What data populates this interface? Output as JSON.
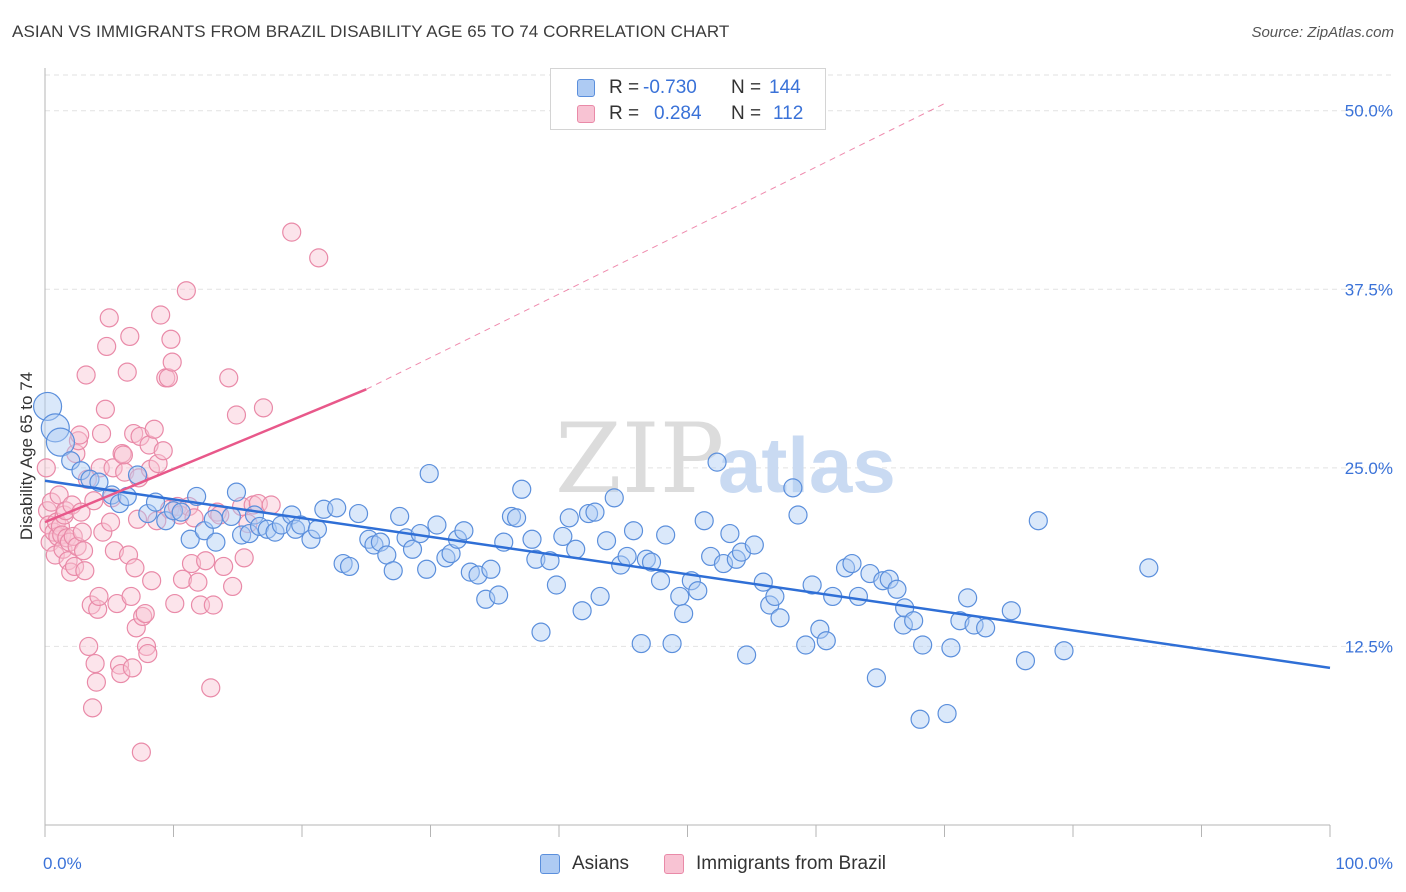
{
  "header": {
    "title": "ASIAN VS IMMIGRANTS FROM BRAZIL DISABILITY AGE 65 TO 74 CORRELATION CHART",
    "source": "Source: ZipAtlas.com"
  },
  "legend": {
    "r_label": "R =",
    "n_label": "N =",
    "rows": [
      {
        "r": "-0.730",
        "n": "144",
        "color": "#5b8fdc",
        "fill": "#aecbf3"
      },
      {
        "r": "0.284",
        "n": "112",
        "color": "#e98aa8",
        "fill": "#f8c3d3"
      }
    ]
  },
  "watermark": {
    "zip": "ZIP",
    "atlas": "atlas"
  },
  "colors": {
    "blue_line": "#2f6fd6",
    "pink_line": "#e8588a",
    "blue_stroke": "#5b8fdc",
    "blue_fill": "#aecbf3",
    "pink_stroke": "#e98aa8",
    "pink_fill": "#f8c3d3",
    "grid": "#e2e2e2",
    "tick_label": "#3a72d8"
  },
  "chart_data": {
    "type": "scatter",
    "title": "ASIAN VS IMMIGRANTS FROM BRAZIL DISABILITY AGE 65 TO 74 CORRELATION CHART",
    "ylabel": "Disability Age 65 to 74",
    "xlabel": "",
    "xlim": [
      0,
      100
    ],
    "ylim": [
      0,
      52.5
    ],
    "x_tick_labels": [
      "0.0%",
      "100.0%"
    ],
    "y_ticks": [
      12.5,
      25.0,
      37.5,
      50.0
    ],
    "y_tick_labels": [
      "12.5%",
      "25.0%",
      "37.5%",
      "50.0%"
    ],
    "grid": "horizontal dashed",
    "legend_position": "bottom-center",
    "series": [
      {
        "name": "Asians",
        "trend": {
          "x": [
            0,
            100
          ],
          "y": [
            24.1,
            11.0
          ],
          "style": "solid"
        },
        "points": [
          [
            0.2,
            29.3
          ],
          [
            0.8,
            27.8
          ],
          [
            1.2,
            26.8
          ],
          [
            2.0,
            25.5
          ],
          [
            2.8,
            24.8
          ],
          [
            3.5,
            24.2
          ],
          [
            4.2,
            24.0
          ],
          [
            5.2,
            23.1
          ],
          [
            5.8,
            22.5
          ],
          [
            6.4,
            23.0
          ],
          [
            7.2,
            24.5
          ],
          [
            8.0,
            21.8
          ],
          [
            8.6,
            22.6
          ],
          [
            9.4,
            21.3
          ],
          [
            10.0,
            22.0
          ],
          [
            10.6,
            21.9
          ],
          [
            11.3,
            20.0
          ],
          [
            11.8,
            23.0
          ],
          [
            12.4,
            20.6
          ],
          [
            13.1,
            21.4
          ],
          [
            13.3,
            19.8
          ],
          [
            14.5,
            21.6
          ],
          [
            14.9,
            23.3
          ],
          [
            15.3,
            20.3
          ],
          [
            15.9,
            20.4
          ],
          [
            16.3,
            21.7
          ],
          [
            16.7,
            20.9
          ],
          [
            17.3,
            20.7
          ],
          [
            17.9,
            20.5
          ],
          [
            18.4,
            21.0
          ],
          [
            19.2,
            21.7
          ],
          [
            19.5,
            20.7
          ],
          [
            19.9,
            21.0
          ],
          [
            20.7,
            20.0
          ],
          [
            21.2,
            20.7
          ],
          [
            21.7,
            22.1
          ],
          [
            22.7,
            22.2
          ],
          [
            23.2,
            18.3
          ],
          [
            23.7,
            18.1
          ],
          [
            24.4,
            21.8
          ],
          [
            25.2,
            20.0
          ],
          [
            25.6,
            19.6
          ],
          [
            26.1,
            19.8
          ],
          [
            26.6,
            18.9
          ],
          [
            27.1,
            17.8
          ],
          [
            27.6,
            21.6
          ],
          [
            28.1,
            20.1
          ],
          [
            28.6,
            19.3
          ],
          [
            29.2,
            20.4
          ],
          [
            29.7,
            17.9
          ],
          [
            29.9,
            24.6
          ],
          [
            30.5,
            21.0
          ],
          [
            31.2,
            18.7
          ],
          [
            31.6,
            19.0
          ],
          [
            32.1,
            20.0
          ],
          [
            32.6,
            20.6
          ],
          [
            33.1,
            17.7
          ],
          [
            33.7,
            17.5
          ],
          [
            34.3,
            15.8
          ],
          [
            34.7,
            17.9
          ],
          [
            35.3,
            16.1
          ],
          [
            35.7,
            19.8
          ],
          [
            36.3,
            21.6
          ],
          [
            36.7,
            21.5
          ],
          [
            37.1,
            23.5
          ],
          [
            37.9,
            20.0
          ],
          [
            38.2,
            18.6
          ],
          [
            38.6,
            13.5
          ],
          [
            39.3,
            18.5
          ],
          [
            39.8,
            16.8
          ],
          [
            40.3,
            20.2
          ],
          [
            40.8,
            21.5
          ],
          [
            41.3,
            19.3
          ],
          [
            41.8,
            15.0
          ],
          [
            42.3,
            21.8
          ],
          [
            42.8,
            21.9
          ],
          [
            43.2,
            16.0
          ],
          [
            43.7,
            19.9
          ],
          [
            44.3,
            22.9
          ],
          [
            44.8,
            18.2
          ],
          [
            45.3,
            18.8
          ],
          [
            45.8,
            20.6
          ],
          [
            46.4,
            12.7
          ],
          [
            46.8,
            18.6
          ],
          [
            47.2,
            18.4
          ],
          [
            47.9,
            17.1
          ],
          [
            48.3,
            20.3
          ],
          [
            48.8,
            12.7
          ],
          [
            49.4,
            16.0
          ],
          [
            49.7,
            14.8
          ],
          [
            50.3,
            17.1
          ],
          [
            50.8,
            16.4
          ],
          [
            51.3,
            21.3
          ],
          [
            51.8,
            18.8
          ],
          [
            52.3,
            25.4
          ],
          [
            52.8,
            18.3
          ],
          [
            53.3,
            20.4
          ],
          [
            53.8,
            18.6
          ],
          [
            54.2,
            19.1
          ],
          [
            54.6,
            11.9
          ],
          [
            55.2,
            19.6
          ],
          [
            55.9,
            17.0
          ],
          [
            56.4,
            15.4
          ],
          [
            56.8,
            16.0
          ],
          [
            57.2,
            14.5
          ],
          [
            58.2,
            23.6
          ],
          [
            58.6,
            21.7
          ],
          [
            59.2,
            12.6
          ],
          [
            59.7,
            16.8
          ],
          [
            60.3,
            13.7
          ],
          [
            60.8,
            12.9
          ],
          [
            61.3,
            16.0
          ],
          [
            62.3,
            18.0
          ],
          [
            62.8,
            18.3
          ],
          [
            63.3,
            16.0
          ],
          [
            64.2,
            17.6
          ],
          [
            64.7,
            10.3
          ],
          [
            65.2,
            17.1
          ],
          [
            65.7,
            17.2
          ],
          [
            66.3,
            16.5
          ],
          [
            66.8,
            14.0
          ],
          [
            66.9,
            15.2
          ],
          [
            67.6,
            14.3
          ],
          [
            68.1,
            7.4
          ],
          [
            68.3,
            12.6
          ],
          [
            70.2,
            7.8
          ],
          [
            70.5,
            12.4
          ],
          [
            71.2,
            14.3
          ],
          [
            71.8,
            15.9
          ],
          [
            72.3,
            14.0
          ],
          [
            73.2,
            13.8
          ],
          [
            75.2,
            15.0
          ],
          [
            76.3,
            11.5
          ],
          [
            77.3,
            21.3
          ],
          [
            79.3,
            12.2
          ],
          [
            85.9,
            18.0
          ]
        ]
      },
      {
        "name": "Immigrants from Brazil",
        "trend": {
          "x": [
            0,
            25,
            70
          ],
          "y": [
            21.2,
            30.5,
            50.5
          ],
          "style": "solid-then-dashed",
          "solid_until": 25
        },
        "points": [
          [
            0.1,
            25.0
          ],
          [
            0.2,
            22.0
          ],
          [
            0.3,
            21.0
          ],
          [
            0.4,
            19.8
          ],
          [
            0.5,
            22.6
          ],
          [
            0.7,
            20.5
          ],
          [
            0.8,
            18.9
          ],
          [
            0.9,
            21.2
          ],
          [
            1.0,
            20.2
          ],
          [
            1.1,
            23.1
          ],
          [
            1.2,
            20.9
          ],
          [
            1.3,
            20.3
          ],
          [
            1.4,
            19.3
          ],
          [
            1.5,
            21.7
          ],
          [
            1.6,
            22.0
          ],
          [
            1.7,
            20.1
          ],
          [
            1.8,
            18.5
          ],
          [
            1.9,
            19.8
          ],
          [
            2.0,
            17.7
          ],
          [
            2.1,
            22.4
          ],
          [
            2.2,
            20.2
          ],
          [
            2.3,
            18.1
          ],
          [
            2.4,
            26.0
          ],
          [
            2.5,
            19.5
          ],
          [
            2.6,
            26.9
          ],
          [
            2.7,
            27.3
          ],
          [
            2.8,
            21.9
          ],
          [
            2.9,
            20.5
          ],
          [
            3.0,
            19.2
          ],
          [
            3.1,
            17.8
          ],
          [
            3.2,
            31.5
          ],
          [
            3.3,
            24.2
          ],
          [
            3.4,
            12.5
          ],
          [
            3.6,
            15.4
          ],
          [
            3.7,
            8.2
          ],
          [
            3.8,
            22.7
          ],
          [
            3.9,
            11.3
          ],
          [
            4.0,
            10.0
          ],
          [
            4.1,
            15.1
          ],
          [
            4.2,
            16.0
          ],
          [
            4.3,
            25.0
          ],
          [
            4.4,
            27.4
          ],
          [
            4.5,
            20.5
          ],
          [
            4.7,
            29.1
          ],
          [
            4.8,
            33.5
          ],
          [
            5.0,
            35.5
          ],
          [
            5.1,
            21.2
          ],
          [
            5.2,
            22.9
          ],
          [
            5.3,
            25.0
          ],
          [
            5.4,
            19.2
          ],
          [
            5.6,
            15.5
          ],
          [
            5.8,
            11.2
          ],
          [
            5.9,
            10.6
          ],
          [
            6.0,
            26.0
          ],
          [
            6.1,
            25.9
          ],
          [
            6.2,
            24.7
          ],
          [
            6.4,
            31.7
          ],
          [
            6.5,
            18.9
          ],
          [
            6.6,
            34.2
          ],
          [
            6.7,
            16.0
          ],
          [
            6.8,
            11.0
          ],
          [
            6.9,
            27.4
          ],
          [
            7.0,
            18.0
          ],
          [
            7.1,
            13.8
          ],
          [
            7.2,
            21.4
          ],
          [
            7.3,
            24.3
          ],
          [
            7.4,
            27.2
          ],
          [
            7.5,
            5.1
          ],
          [
            7.6,
            14.6
          ],
          [
            7.8,
            14.8
          ],
          [
            7.9,
            12.5
          ],
          [
            8.0,
            12.0
          ],
          [
            8.1,
            26.6
          ],
          [
            8.2,
            24.9
          ],
          [
            8.3,
            17.1
          ],
          [
            8.5,
            27.7
          ],
          [
            8.7,
            21.3
          ],
          [
            8.8,
            25.3
          ],
          [
            9.0,
            35.7
          ],
          [
            9.2,
            26.2
          ],
          [
            9.4,
            31.3
          ],
          [
            9.6,
            31.3
          ],
          [
            9.7,
            22.1
          ],
          [
            9.8,
            34.0
          ],
          [
            9.9,
            32.4
          ],
          [
            10.1,
            15.5
          ],
          [
            10.3,
            22.3
          ],
          [
            10.5,
            21.7
          ],
          [
            10.7,
            17.2
          ],
          [
            11.0,
            37.4
          ],
          [
            11.2,
            22.3
          ],
          [
            11.4,
            18.3
          ],
          [
            11.6,
            21.5
          ],
          [
            11.9,
            17.0
          ],
          [
            12.1,
            15.4
          ],
          [
            12.5,
            18.5
          ],
          [
            12.9,
            9.6
          ],
          [
            13.1,
            15.4
          ],
          [
            13.4,
            21.9
          ],
          [
            13.6,
            21.7
          ],
          [
            13.9,
            18.1
          ],
          [
            14.3,
            31.3
          ],
          [
            14.6,
            16.7
          ],
          [
            14.9,
            28.7
          ],
          [
            15.3,
            22.3
          ],
          [
            15.5,
            18.7
          ],
          [
            15.8,
            21.1
          ],
          [
            16.2,
            22.4
          ],
          [
            16.6,
            22.5
          ],
          [
            17.0,
            29.2
          ],
          [
            17.6,
            22.4
          ],
          [
            19.2,
            41.5
          ],
          [
            21.3,
            39.7
          ]
        ]
      }
    ]
  }
}
